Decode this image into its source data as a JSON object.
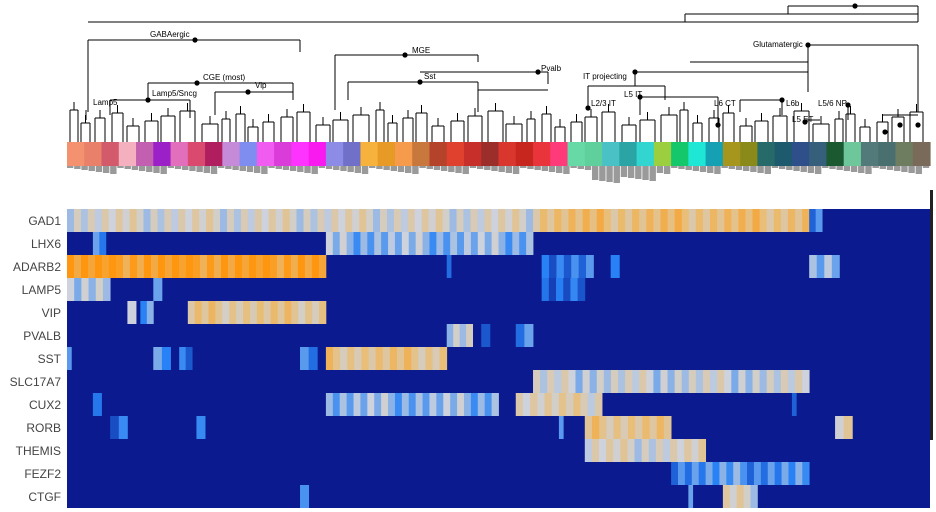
{
  "chart_data": {
    "type": "heatmap",
    "dendrogram_labels": [
      "GABAergic",
      "Glutamatergic",
      "MGE",
      "CGE (most)",
      "Lamp5/Sncg",
      "Vip",
      "Lamp5",
      "Sst",
      "Pvalb",
      "IT projecting",
      "L2/3 IT",
      "L5 IT",
      "L6 CT",
      "L6b",
      "L5 ET",
      "L5/6 NP"
    ],
    "genes": [
      "GAD1",
      "LHX6",
      "ADARB2",
      "LAMP5",
      "VIP",
      "PVALB",
      "SST",
      "SLC17A7",
      "CUX2",
      "RORB",
      "THEMIS",
      "FEZF2",
      "CTGF"
    ],
    "gene_expression_blocks": [
      {
        "gene": "GAD1",
        "blocks": [
          [
            0.0,
            0.54,
            0.55
          ],
          [
            0.54,
            0.86,
            0.75
          ],
          [
            0.86,
            0.875,
            0.3
          ]
        ]
      },
      {
        "gene": "LHX6",
        "blocks": [
          [
            0.03,
            0.045,
            0.25
          ],
          [
            0.3,
            0.54,
            0.4
          ]
        ]
      },
      {
        "gene": "ADARB2",
        "blocks": [
          [
            0.0,
            0.3,
            0.95
          ],
          [
            0.44,
            0.445,
            0.15
          ],
          [
            0.55,
            0.61,
            0.2
          ],
          [
            0.63,
            0.64,
            0.2
          ],
          [
            0.86,
            0.895,
            0.4
          ]
        ]
      },
      {
        "gene": "LAMP5",
        "blocks": [
          [
            0.0,
            0.05,
            0.5
          ],
          [
            0.1,
            0.11,
            0.35
          ],
          [
            0.55,
            0.6,
            0.22
          ]
        ]
      },
      {
        "gene": "VIP",
        "blocks": [
          [
            0.07,
            0.08,
            0.55
          ],
          [
            0.085,
            0.1,
            0.3
          ],
          [
            0.14,
            0.3,
            0.68
          ]
        ]
      },
      {
        "gene": "PVALB",
        "blocks": [
          [
            0.44,
            0.47,
            0.5
          ],
          [
            0.48,
            0.49,
            0.25
          ],
          [
            0.52,
            0.54,
            0.3
          ]
        ]
      },
      {
        "gene": "SST",
        "blocks": [
          [
            0.0,
            0.005,
            0.2
          ],
          [
            0.1,
            0.12,
            0.25
          ],
          [
            0.13,
            0.145,
            0.15
          ],
          [
            0.27,
            0.29,
            0.2
          ],
          [
            0.3,
            0.44,
            0.7
          ]
        ]
      },
      {
        "gene": "SLC17A7",
        "blocks": [
          [
            0.54,
            0.86,
            0.5
          ]
        ]
      },
      {
        "gene": "CUX2",
        "blocks": [
          [
            0.03,
            0.04,
            0.2
          ],
          [
            0.3,
            0.5,
            0.4
          ],
          [
            0.52,
            0.62,
            0.6
          ],
          [
            0.84,
            0.845,
            0.15
          ]
        ]
      },
      {
        "gene": "RORB",
        "blocks": [
          [
            0.05,
            0.07,
            0.15
          ],
          [
            0.15,
            0.16,
            0.3
          ],
          [
            0.57,
            0.575,
            0.35
          ],
          [
            0.6,
            0.7,
            0.7
          ],
          [
            0.89,
            0.91,
            0.55
          ]
        ]
      },
      {
        "gene": "THEMIS",
        "blocks": [
          [
            0.6,
            0.74,
            0.55
          ]
        ]
      },
      {
        "gene": "FEZF2",
        "blocks": [
          [
            0.7,
            0.86,
            0.3
          ]
        ]
      },
      {
        "gene": "CTGF",
        "blocks": [
          [
            0.27,
            0.28,
            0.2
          ],
          [
            0.72,
            0.725,
            0.25
          ],
          [
            0.76,
            0.8,
            0.55
          ]
        ]
      }
    ],
    "xlabel": "",
    "ylabel": ""
  }
}
